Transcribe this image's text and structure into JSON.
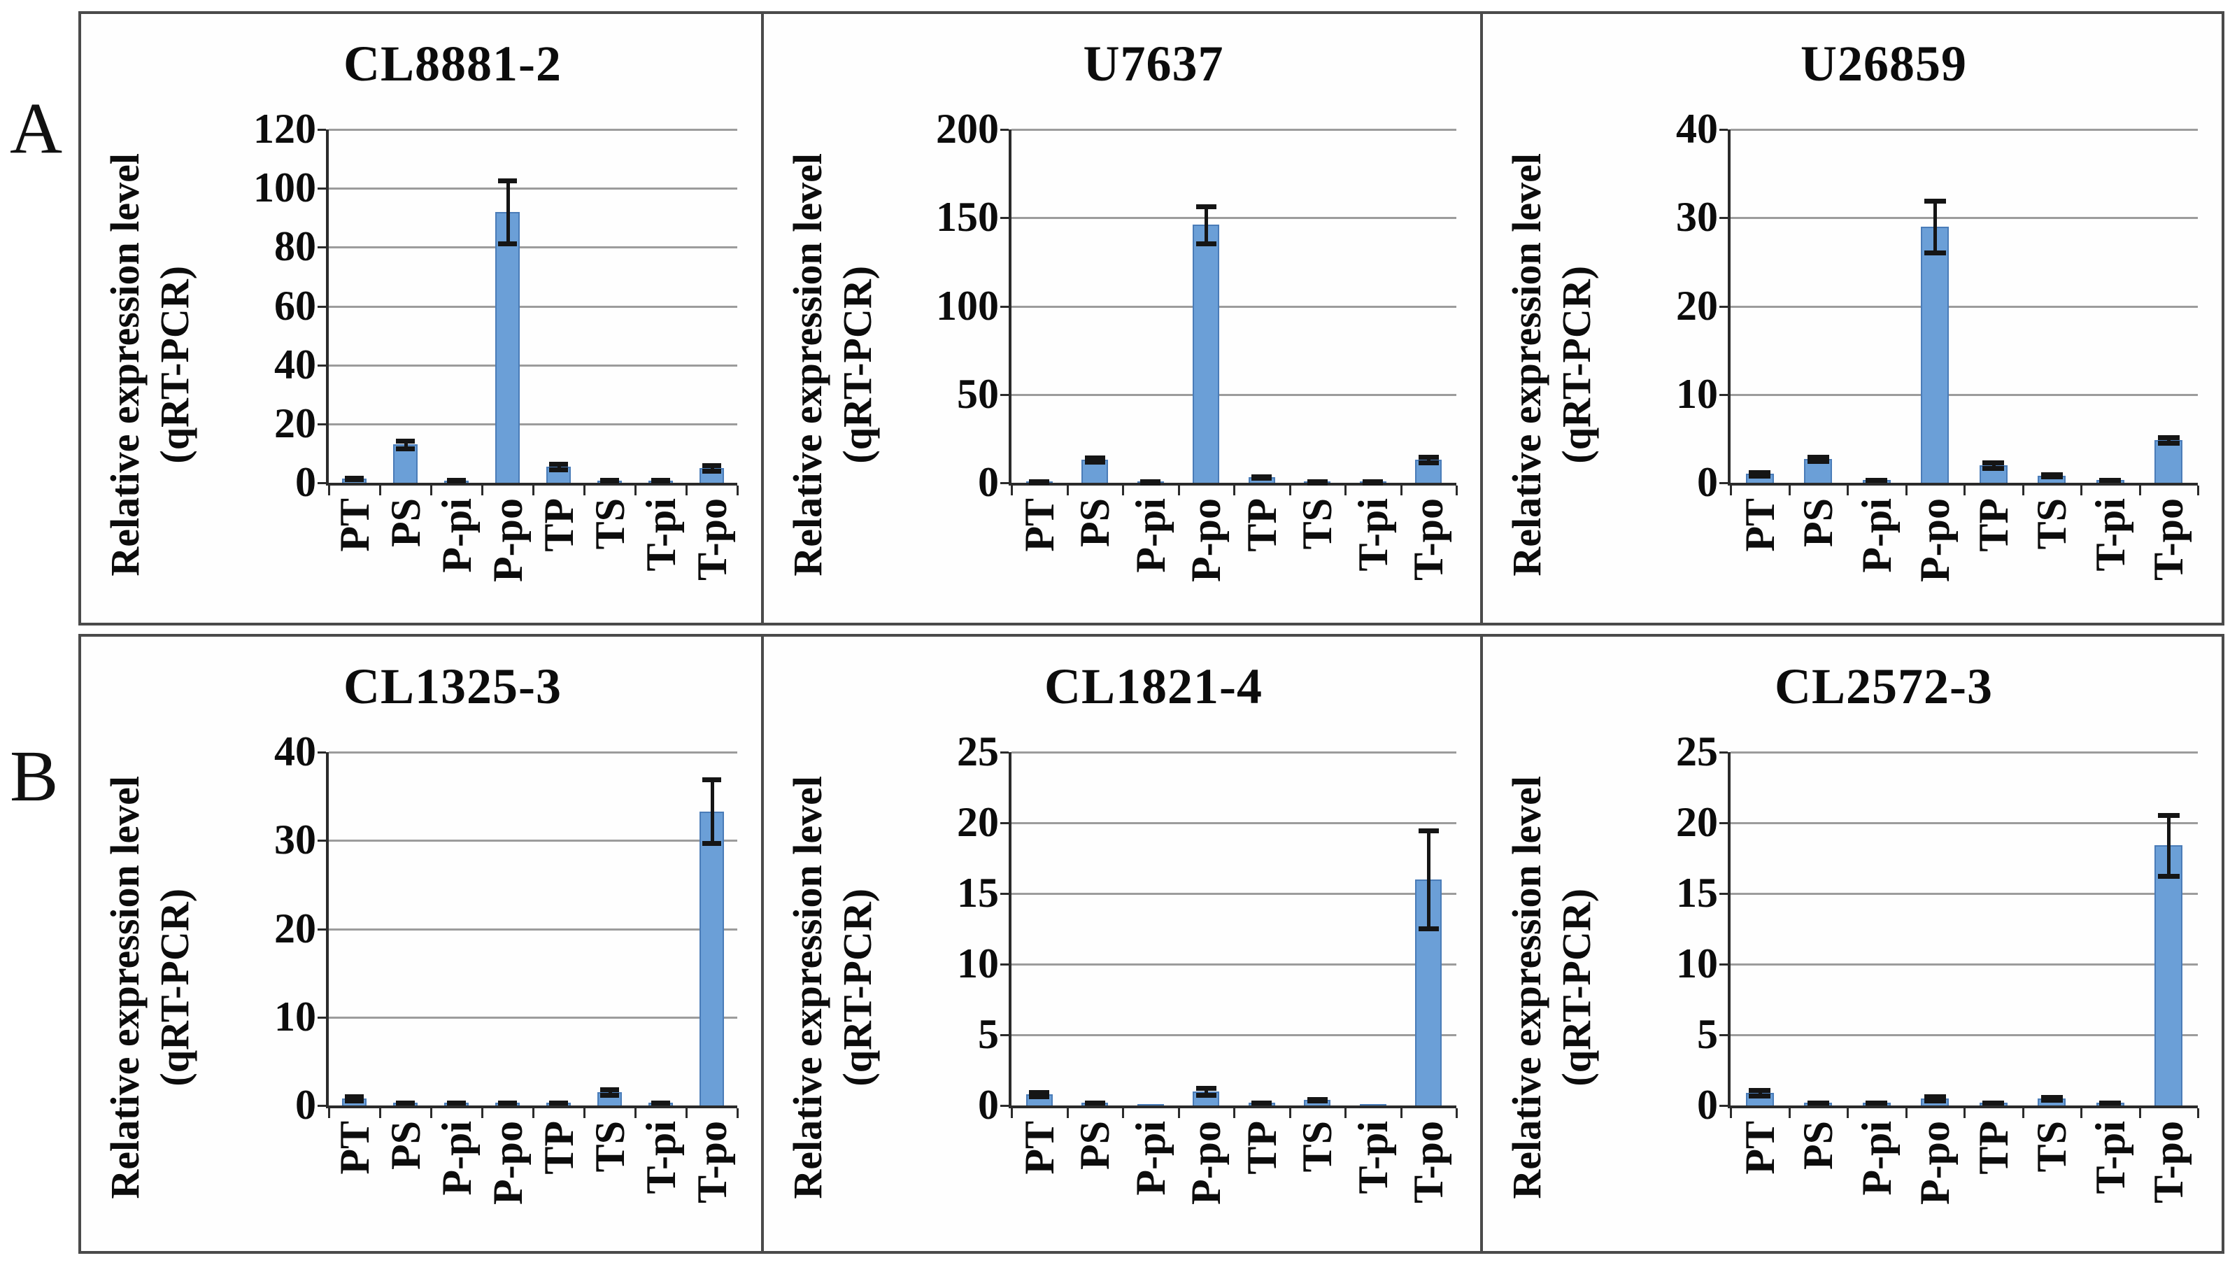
{
  "figure": {
    "panel_a_label": "A",
    "panel_b_label": "B"
  },
  "ylabel": {
    "line1": "Relative expression level",
    "line2": "(qRT-PCR)"
  },
  "categories": [
    "PT",
    "PS",
    "P-pi",
    "P-po",
    "TP",
    "TS",
    "T-pi",
    "T-po"
  ],
  "colors": {
    "bar_fill": "#6b9fd7",
    "bar_border": "#4a7cb8",
    "error_bar": "#151515",
    "gridline": "#9c9c9c",
    "axis": "#2b2b2b",
    "box_border": "#4a4a4a",
    "text": "#0c0c0c"
  },
  "chart_data": [
    {
      "type": "bar",
      "panel": "A",
      "title": "CL8881-2",
      "xlabel": "",
      "ylabel": "Relative expression level (qRT-PCR)",
      "categories": [
        "PT",
        "PS",
        "P-pi",
        "P-po",
        "TP",
        "TS",
        "T-pi",
        "T-po"
      ],
      "values": [
        1.5,
        13,
        0.8,
        92,
        5.5,
        0.8,
        0.8,
        5
      ],
      "errors": [
        0.5,
        1.5,
        0.2,
        11,
        1.2,
        0.2,
        0.2,
        1.2
      ],
      "ylim": [
        0,
        120
      ],
      "yticks": [
        0,
        20,
        40,
        60,
        80,
        100,
        120
      ],
      "grid": true,
      "legend": false
    },
    {
      "type": "bar",
      "panel": "A",
      "title": "U7637",
      "xlabel": "",
      "ylabel": "Relative expression level (qRT-PCR)",
      "categories": [
        "PT",
        "PS",
        "P-pi",
        "P-po",
        "TP",
        "TS",
        "T-pi",
        "T-po"
      ],
      "values": [
        0.5,
        13,
        0.4,
        146,
        3,
        0.4,
        0.3,
        13
      ],
      "errors": [
        0.1,
        1.5,
        0.1,
        11,
        0.8,
        0.1,
        0.1,
        2
      ],
      "ylim": [
        0,
        200
      ],
      "yticks": [
        0,
        50,
        100,
        150,
        200
      ],
      "grid": true,
      "legend": false
    },
    {
      "type": "bar",
      "panel": "A",
      "title": "U26859",
      "xlabel": "",
      "ylabel": "Relative expression level (qRT-PCR)",
      "categories": [
        "PT",
        "PS",
        "P-pi",
        "P-po",
        "TP",
        "TS",
        "T-pi",
        "T-po"
      ],
      "values": [
        1.0,
        2.7,
        0.3,
        29,
        2.0,
        0.8,
        0.3,
        4.8
      ],
      "errors": [
        0.3,
        0.3,
        0.1,
        3,
        0.4,
        0.2,
        0.1,
        0.4
      ],
      "ylim": [
        0,
        40
      ],
      "yticks": [
        0,
        10,
        20,
        30,
        40
      ],
      "grid": true,
      "legend": false
    },
    {
      "type": "bar",
      "panel": "B",
      "title": "CL1325-3",
      "xlabel": "",
      "ylabel": "Relative expression level (qRT-PCR)",
      "categories": [
        "PT",
        "PS",
        "P-pi",
        "P-po",
        "TP",
        "TS",
        "T-pi",
        "T-po"
      ],
      "values": [
        0.8,
        0.3,
        0.3,
        0.3,
        0.3,
        1.5,
        0.3,
        33.3
      ],
      "errors": [
        0.3,
        0.1,
        0.1,
        0.1,
        0.1,
        0.4,
        0.1,
        3.7
      ],
      "ylim": [
        0,
        40
      ],
      "yticks": [
        0,
        10,
        20,
        30,
        40
      ],
      "grid": true,
      "legend": false
    },
    {
      "type": "bar",
      "panel": "B",
      "title": "CL1821-4",
      "xlabel": "",
      "ylabel": "Relative expression level (qRT-PCR)",
      "categories": [
        "PT",
        "PS",
        "P-pi",
        "P-po",
        "TP",
        "TS",
        "T-pi",
        "T-po"
      ],
      "values": [
        0.8,
        0.2,
        0.05,
        1.0,
        0.2,
        0.4,
        0.05,
        16
      ],
      "errors": [
        0.2,
        0.05,
        0,
        0.3,
        0.05,
        0.1,
        0,
        3.5
      ],
      "ylim": [
        0,
        25
      ],
      "yticks": [
        0,
        5,
        10,
        15,
        20,
        25
      ],
      "grid": true,
      "legend": false
    },
    {
      "type": "bar",
      "panel": "B",
      "title": "CL2572-3",
      "xlabel": "",
      "ylabel": "Relative expression level (qRT-PCR)",
      "categories": [
        "PT",
        "PS",
        "P-pi",
        "P-po",
        "TP",
        "TS",
        "T-pi",
        "T-po"
      ],
      "values": [
        0.9,
        0.2,
        0.2,
        0.5,
        0.2,
        0.5,
        0.2,
        18.4
      ],
      "errors": [
        0.25,
        0.05,
        0.05,
        0.2,
        0.05,
        0.15,
        0.05,
        2.2
      ],
      "ylim": [
        0,
        25
      ],
      "yticks": [
        0,
        5,
        10,
        15,
        20,
        25
      ],
      "grid": true,
      "legend": false
    }
  ]
}
